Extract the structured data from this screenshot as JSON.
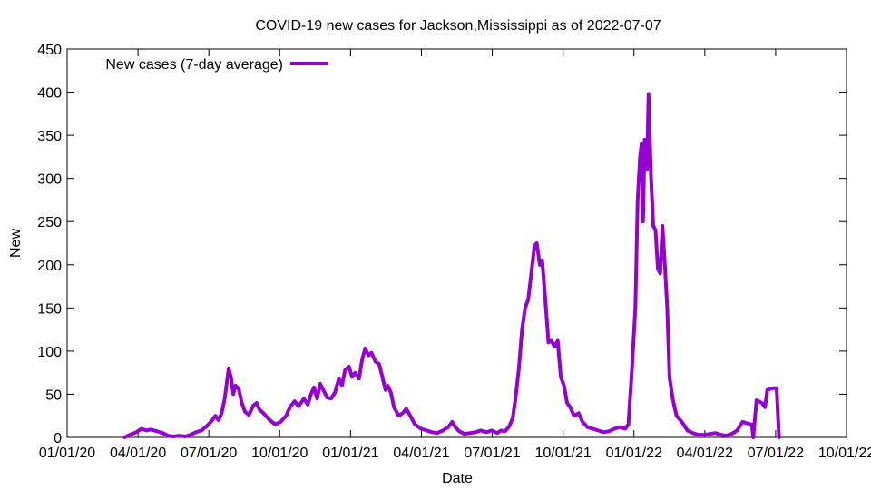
{
  "chart_data": {
    "type": "line",
    "title": "COVID-19 new cases for Jackson,Mississippi as of 2022-07-07",
    "xlabel": "Date",
    "ylabel": "New",
    "xlim": [
      "2020-01-01",
      "2022-10-01"
    ],
    "ylim": [
      0,
      450
    ],
    "x_ticks": [
      "01/01/20",
      "04/01/20",
      "07/01/20",
      "10/01/20",
      "01/01/21",
      "04/01/21",
      "07/01/21",
      "10/01/21",
      "01/01/22",
      "04/01/22",
      "07/01/22",
      "10/01/22"
    ],
    "y_ticks": [
      0,
      50,
      100,
      150,
      200,
      250,
      300,
      350,
      400,
      450
    ],
    "legend_position": "top-left",
    "grid": false,
    "series": [
      {
        "name": "New cases (7-day average)",
        "color": "#9400d3",
        "points": [
          [
            "2020-03-15",
            0
          ],
          [
            "2020-03-22",
            3
          ],
          [
            "2020-03-30",
            6
          ],
          [
            "2020-04-06",
            10
          ],
          [
            "2020-04-12",
            8
          ],
          [
            "2020-04-18",
            9
          ],
          [
            "2020-04-26",
            7
          ],
          [
            "2020-05-03",
            5
          ],
          [
            "2020-05-10",
            2
          ],
          [
            "2020-05-17",
            1
          ],
          [
            "2020-05-24",
            2
          ],
          [
            "2020-06-01",
            1
          ],
          [
            "2020-06-08",
            3
          ],
          [
            "2020-06-15",
            6
          ],
          [
            "2020-06-22",
            8
          ],
          [
            "2020-06-29",
            13
          ],
          [
            "2020-07-06",
            20
          ],
          [
            "2020-07-10",
            25
          ],
          [
            "2020-07-14",
            20
          ],
          [
            "2020-07-18",
            28
          ],
          [
            "2020-07-22",
            45
          ],
          [
            "2020-07-27",
            80
          ],
          [
            "2020-07-30",
            70
          ],
          [
            "2020-08-02",
            50
          ],
          [
            "2020-08-05",
            60
          ],
          [
            "2020-08-09",
            56
          ],
          [
            "2020-08-13",
            40
          ],
          [
            "2020-08-17",
            30
          ],
          [
            "2020-08-22",
            26
          ],
          [
            "2020-08-28",
            37
          ],
          [
            "2020-09-01",
            40
          ],
          [
            "2020-09-05",
            32
          ],
          [
            "2020-09-10",
            28
          ],
          [
            "2020-09-18",
            20
          ],
          [
            "2020-09-25",
            15
          ],
          [
            "2020-10-02",
            18
          ],
          [
            "2020-10-09",
            25
          ],
          [
            "2020-10-14",
            35
          ],
          [
            "2020-10-20",
            42
          ],
          [
            "2020-10-25",
            36
          ],
          [
            "2020-11-01",
            45
          ],
          [
            "2020-11-06",
            38
          ],
          [
            "2020-11-10",
            50
          ],
          [
            "2020-11-14",
            58
          ],
          [
            "2020-11-18",
            45
          ],
          [
            "2020-11-22",
            62
          ],
          [
            "2020-11-26",
            55
          ],
          [
            "2020-12-01",
            46
          ],
          [
            "2020-12-06",
            45
          ],
          [
            "2020-12-11",
            52
          ],
          [
            "2020-12-16",
            68
          ],
          [
            "2020-12-20",
            60
          ],
          [
            "2020-12-24",
            78
          ],
          [
            "2020-12-29",
            82
          ],
          [
            "2021-01-02",
            70
          ],
          [
            "2021-01-06",
            75
          ],
          [
            "2021-01-11",
            68
          ],
          [
            "2021-01-15",
            90
          ],
          [
            "2021-01-19",
            103
          ],
          [
            "2021-01-23",
            95
          ],
          [
            "2021-01-27",
            98
          ],
          [
            "2021-02-01",
            88
          ],
          [
            "2021-02-06",
            85
          ],
          [
            "2021-02-10",
            70
          ],
          [
            "2021-02-14",
            55
          ],
          [
            "2021-02-17",
            60
          ],
          [
            "2021-02-21",
            52
          ],
          [
            "2021-02-25",
            35
          ],
          [
            "2021-03-03",
            25
          ],
          [
            "2021-03-08",
            28
          ],
          [
            "2021-03-13",
            33
          ],
          [
            "2021-03-18",
            25
          ],
          [
            "2021-03-24",
            15
          ],
          [
            "2021-04-01",
            10
          ],
          [
            "2021-04-08",
            8
          ],
          [
            "2021-04-15",
            6
          ],
          [
            "2021-04-22",
            5
          ],
          [
            "2021-04-29",
            8
          ],
          [
            "2021-05-06",
            12
          ],
          [
            "2021-05-11",
            18
          ],
          [
            "2021-05-15",
            12
          ],
          [
            "2021-05-20",
            7
          ],
          [
            "2021-05-27",
            4
          ],
          [
            "2021-06-03",
            5
          ],
          [
            "2021-06-10",
            6
          ],
          [
            "2021-06-17",
            8
          ],
          [
            "2021-06-24",
            6
          ],
          [
            "2021-07-01",
            8
          ],
          [
            "2021-07-08",
            5
          ],
          [
            "2021-07-13",
            8
          ],
          [
            "2021-07-18",
            7
          ],
          [
            "2021-07-23",
            12
          ],
          [
            "2021-07-28",
            22
          ],
          [
            "2021-08-01",
            48
          ],
          [
            "2021-08-05",
            80
          ],
          [
            "2021-08-09",
            125
          ],
          [
            "2021-08-13",
            150
          ],
          [
            "2021-08-17",
            160
          ],
          [
            "2021-08-21",
            190
          ],
          [
            "2021-08-25",
            222
          ],
          [
            "2021-08-28",
            225
          ],
          [
            "2021-09-01",
            200
          ],
          [
            "2021-09-04",
            205
          ],
          [
            "2021-09-08",
            160
          ],
          [
            "2021-09-12",
            110
          ],
          [
            "2021-09-16",
            112
          ],
          [
            "2021-09-20",
            105
          ],
          [
            "2021-09-24",
            112
          ],
          [
            "2021-09-28",
            70
          ],
          [
            "2021-10-02",
            60
          ],
          [
            "2021-10-06",
            40
          ],
          [
            "2021-10-10",
            35
          ],
          [
            "2021-10-15",
            25
          ],
          [
            "2021-10-21",
            28
          ],
          [
            "2021-10-26",
            18
          ],
          [
            "2021-11-01",
            12
          ],
          [
            "2021-11-08",
            10
          ],
          [
            "2021-11-15",
            8
          ],
          [
            "2021-11-22",
            6
          ],
          [
            "2021-11-29",
            7
          ],
          [
            "2021-12-06",
            10
          ],
          [
            "2021-12-13",
            12
          ],
          [
            "2021-12-20",
            10
          ],
          [
            "2021-12-24",
            15
          ],
          [
            "2021-12-28",
            70
          ],
          [
            "2022-01-02",
            150
          ],
          [
            "2022-01-05",
            275
          ],
          [
            "2022-01-08",
            325
          ],
          [
            "2022-01-10",
            340
          ],
          [
            "2022-01-12",
            250
          ],
          [
            "2022-01-14",
            345
          ],
          [
            "2022-01-17",
            310
          ],
          [
            "2022-01-19",
            398
          ],
          [
            "2022-01-22",
            305
          ],
          [
            "2022-01-25",
            245
          ],
          [
            "2022-01-28",
            240
          ],
          [
            "2022-01-31",
            195
          ],
          [
            "2022-02-03",
            190
          ],
          [
            "2022-02-06",
            245
          ],
          [
            "2022-02-09",
            200
          ],
          [
            "2022-02-12",
            150
          ],
          [
            "2022-02-15",
            70
          ],
          [
            "2022-02-19",
            45
          ],
          [
            "2022-02-24",
            25
          ],
          [
            "2022-03-03",
            18
          ],
          [
            "2022-03-10",
            8
          ],
          [
            "2022-03-17",
            5
          ],
          [
            "2022-03-24",
            3
          ],
          [
            "2022-04-01",
            3
          ],
          [
            "2022-04-08",
            4
          ],
          [
            "2022-04-15",
            5
          ],
          [
            "2022-04-22",
            3
          ],
          [
            "2022-04-29",
            2
          ],
          [
            "2022-05-06",
            4
          ],
          [
            "2022-05-13",
            8
          ],
          [
            "2022-05-20",
            18
          ],
          [
            "2022-05-27",
            16
          ],
          [
            "2022-06-01",
            15
          ],
          [
            "2022-06-03",
            0
          ],
          [
            "2022-06-07",
            43
          ],
          [
            "2022-06-14",
            40
          ],
          [
            "2022-06-18",
            35
          ],
          [
            "2022-06-21",
            55
          ],
          [
            "2022-06-28",
            57
          ],
          [
            "2022-07-03",
            57
          ],
          [
            "2022-07-06",
            0
          ]
        ]
      }
    ]
  }
}
